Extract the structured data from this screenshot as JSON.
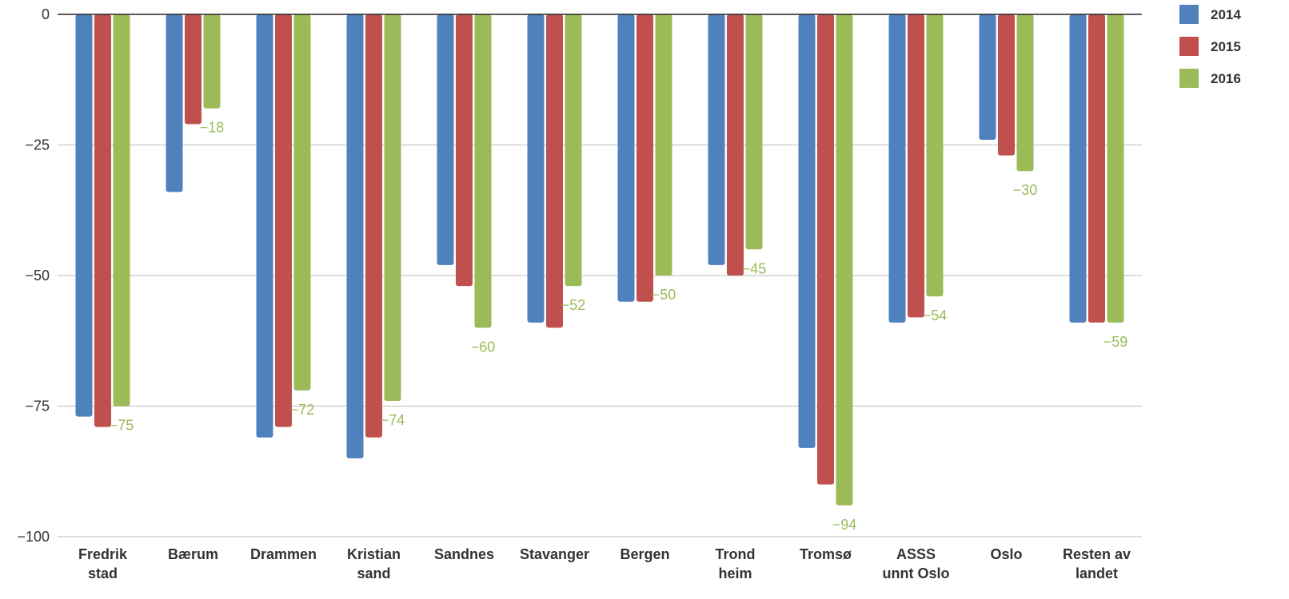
{
  "chart_data": {
    "type": "bar",
    "title": "",
    "xlabel": "",
    "ylabel": "",
    "ylim": [
      -100,
      0
    ],
    "yticks": [
      0,
      -25,
      -50,
      -75,
      -100
    ],
    "grid": true,
    "legend_position": "top-right",
    "categories": [
      [
        "Fredrik",
        "stad"
      ],
      [
        "Bærum"
      ],
      [
        "Drammen"
      ],
      [
        "Kristian",
        "sand"
      ],
      [
        "Sandnes"
      ],
      [
        "Stavanger"
      ],
      [
        "Bergen"
      ],
      [
        "Trond",
        "heim"
      ],
      [
        "Tromsø"
      ],
      [
        "ASSS",
        "unnt Oslo"
      ],
      [
        "Oslo"
      ],
      [
        "Resten av",
        "landet"
      ]
    ],
    "series": [
      {
        "name": "2014",
        "color": "#4f81bd",
        "values": [
          -77,
          -34,
          -81,
          -85,
          -48,
          -59,
          -55,
          -48,
          -83,
          -59,
          -24,
          -59
        ]
      },
      {
        "name": "2015",
        "color": "#c0504d",
        "values": [
          -79,
          -21,
          -79,
          -81,
          -52,
          -60,
          -55,
          -50,
          -90,
          -58,
          -27,
          -59
        ]
      },
      {
        "name": "2016",
        "color": "#9bbb59",
        "values": [
          -75,
          -18,
          -72,
          -74,
          -60,
          -52,
          -50,
          -45,
          -94,
          -54,
          -30,
          -59
        ]
      }
    ],
    "data_labels": {
      "series": "2016",
      "texts": [
        "−75",
        "−18",
        "−72",
        "−74",
        "−60",
        "−52",
        "−50",
        "−45",
        "−94",
        "−54",
        "−30",
        "−59"
      ]
    }
  }
}
